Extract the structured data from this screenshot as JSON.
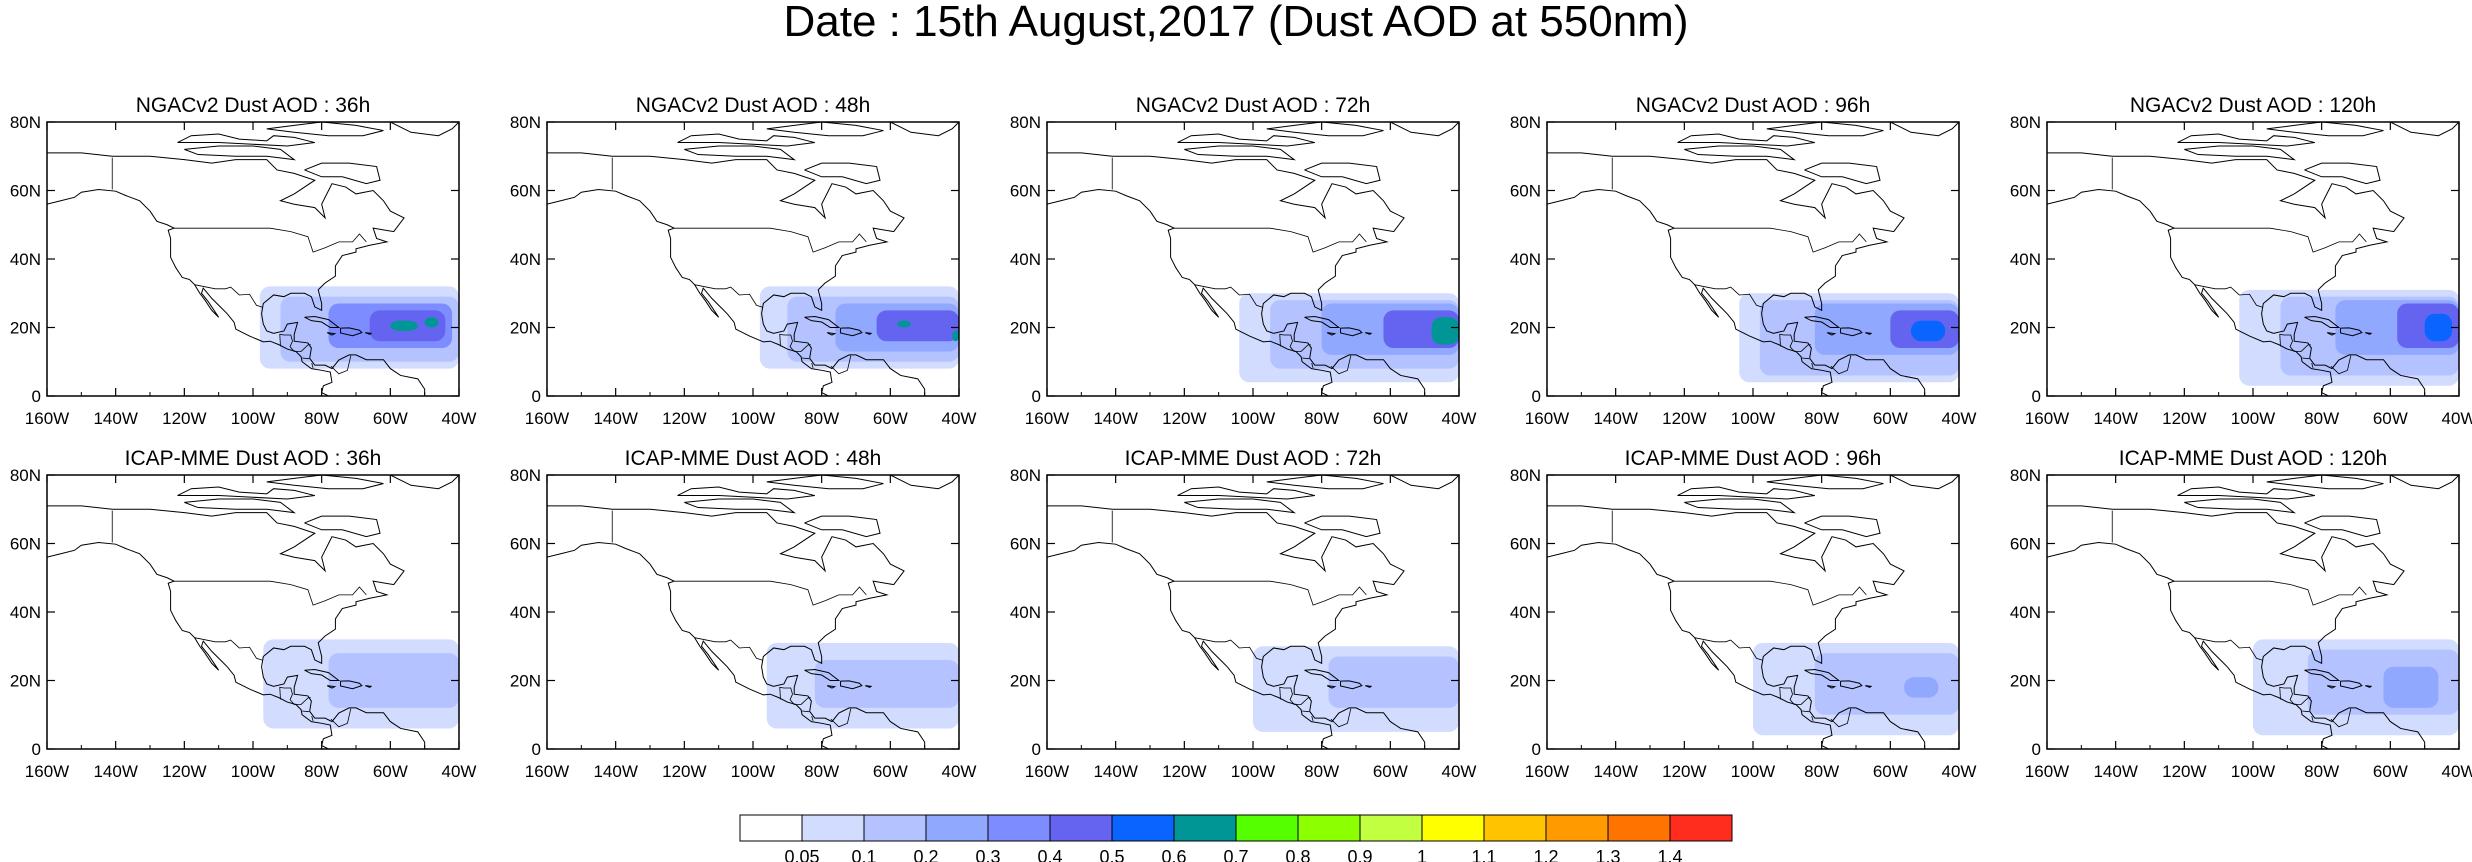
{
  "title": "Date : 15th August,2017 (Dust AOD at 550nm)",
  "panels": [
    {
      "title": "NGACv2 Dust AOD : 36h",
      "model": "NGACv2",
      "lead": "36h"
    },
    {
      "title": "NGACv2 Dust AOD : 48h",
      "model": "NGACv2",
      "lead": "48h"
    },
    {
      "title": "NGACv2 Dust AOD : 72h",
      "model": "NGACv2",
      "lead": "72h"
    },
    {
      "title": "NGACv2 Dust AOD : 96h",
      "model": "NGACv2",
      "lead": "96h"
    },
    {
      "title": "NGACv2 Dust AOD : 120h",
      "model": "NGACv2",
      "lead": "120h"
    },
    {
      "title": "ICAP-MME Dust AOD : 36h",
      "model": "ICAP-MME",
      "lead": "36h"
    },
    {
      "title": "ICAP-MME Dust AOD : 48h",
      "model": "ICAP-MME",
      "lead": "48h"
    },
    {
      "title": "ICAP-MME Dust AOD : 72h",
      "model": "ICAP-MME",
      "lead": "72h"
    },
    {
      "title": "ICAP-MME Dust AOD : 96h",
      "model": "ICAP-MME",
      "lead": "96h"
    },
    {
      "title": "ICAP-MME Dust AOD : 120h",
      "model": "ICAP-MME",
      "lead": "120h"
    }
  ],
  "map": {
    "lon_range": [
      -160,
      -40
    ],
    "lat_range": [
      0,
      80
    ],
    "lon_ticks": [
      "160W",
      "140W",
      "120W",
      "100W",
      "80W",
      "60W",
      "40W"
    ],
    "lat_ticks": [
      "0",
      "20N",
      "40N",
      "60N",
      "80N"
    ]
  },
  "colorbar": {
    "labels": [
      "0.05",
      "0.1",
      "0.2",
      "0.3",
      "0.4",
      "0.5",
      "0.6",
      "0.7",
      "0.8",
      "0.9",
      "1",
      "1.1",
      "1.2",
      "1.3",
      "1.4"
    ],
    "colors": [
      "#ffffff",
      "#d2dcff",
      "#b4c3ff",
      "#91a8ff",
      "#7d8cff",
      "#6464f0",
      "#0a64ff",
      "#009696",
      "#55ff00",
      "#8cff00",
      "#c3ff41",
      "#ffff00",
      "#ffc300",
      "#ff9b00",
      "#ff7300",
      "#ff2d1e"
    ]
  }
}
